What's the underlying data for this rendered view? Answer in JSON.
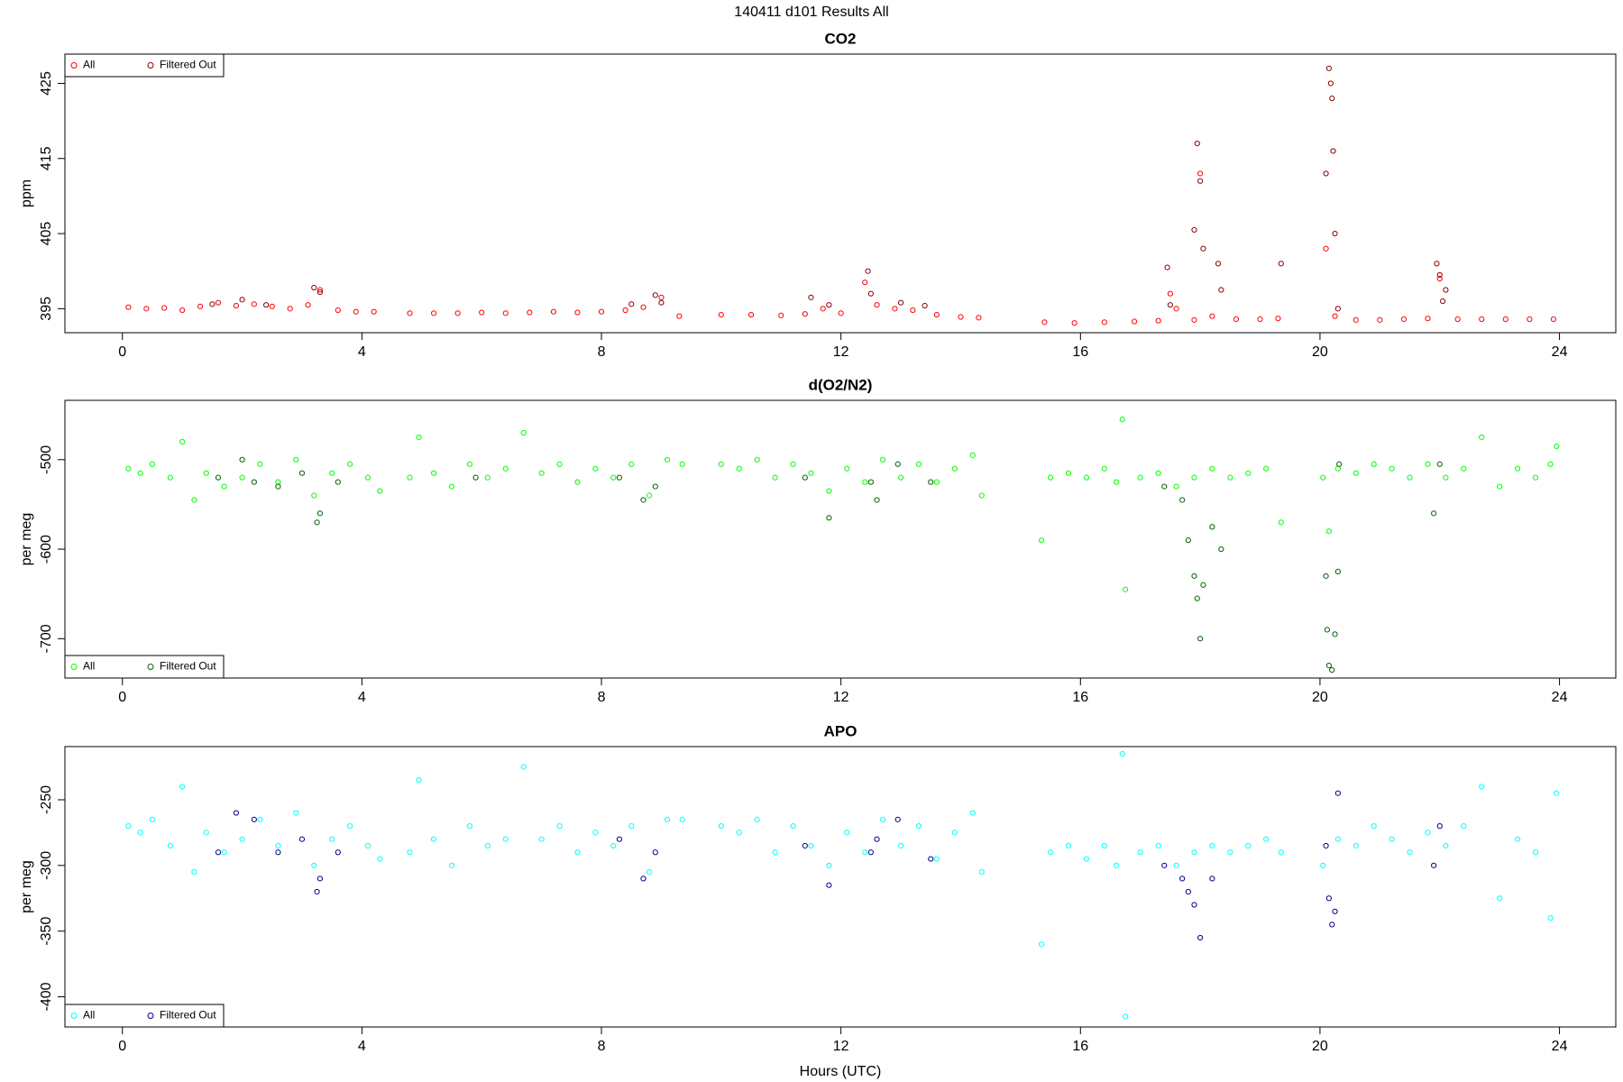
{
  "suptitle": "140411   d101   Results All",
  "chart_data": [
    {
      "type": "scatter",
      "title": "CO2",
      "ylabel": "ppm",
      "legend": "top-left",
      "xlim": [
        -0.96,
        24.94
      ],
      "xticks": [
        0,
        4,
        8,
        12,
        16,
        20,
        24
      ],
      "ylim": [
        391.8,
        428.9
      ],
      "yticks": [
        395,
        405,
        415,
        425
      ],
      "series": [
        {
          "name": "All",
          "color": "#ff0000",
          "x": [
            0.1,
            0.4,
            0.7,
            1.0,
            1.3,
            1.6,
            1.9,
            2.2,
            2.5,
            2.8,
            3.1,
            3.3,
            3.6,
            3.9,
            4.2,
            4.8,
            5.2,
            5.6,
            6.0,
            6.4,
            6.8,
            7.2,
            7.6,
            8.0,
            8.4,
            8.7,
            9.0,
            9.3,
            10.0,
            10.5,
            11.0,
            11.4,
            11.7,
            12.0,
            12.4,
            12.6,
            12.9,
            13.2,
            13.6,
            14.0,
            14.3,
            15.4,
            15.9,
            16.4,
            16.9,
            17.3,
            17.5,
            17.6,
            17.9,
            18.0,
            18.2,
            18.6,
            19.0,
            19.3,
            20.1,
            20.25,
            20.6,
            21.0,
            21.4,
            21.8,
            22.0,
            22.3,
            22.7,
            23.1,
            23.5,
            23.9
          ],
          "values": [
            395.2,
            395.0,
            395.1,
            394.8,
            395.3,
            395.8,
            395.4,
            395.6,
            395.3,
            395.0,
            395.5,
            397.5,
            394.8,
            394.6,
            394.6,
            394.4,
            394.4,
            394.4,
            394.5,
            394.4,
            394.5,
            394.6,
            394.5,
            394.6,
            394.8,
            395.2,
            396.5,
            394.0,
            394.2,
            394.2,
            394.1,
            394.3,
            395.0,
            394.4,
            398.5,
            395.5,
            395.0,
            394.8,
            394.2,
            393.9,
            393.8,
            393.2,
            393.1,
            393.2,
            393.3,
            393.4,
            397.0,
            395.0,
            393.5,
            413.0,
            394.0,
            393.6,
            393.6,
            393.7,
            403.0,
            394.0,
            393.5,
            393.5,
            393.6,
            393.7,
            399.0,
            393.6,
            393.6,
            393.6,
            393.6,
            393.6
          ]
        },
        {
          "name": "Filtered Out",
          "color": "#8b0000",
          "x": [
            1.5,
            2.0,
            2.4,
            3.2,
            3.3,
            8.5,
            8.9,
            9.0,
            11.5,
            11.8,
            12.45,
            12.5,
            13.0,
            13.4,
            17.45,
            17.5,
            17.9,
            17.95,
            18.0,
            18.05,
            18.3,
            18.35,
            19.35,
            20.15,
            20.18,
            20.2,
            20.22,
            20.25,
            20.1,
            20.3,
            21.95,
            22.0,
            22.1,
            22.05
          ],
          "values": [
            395.6,
            396.2,
            395.5,
            397.8,
            397.2,
            395.6,
            396.8,
            395.8,
            396.5,
            395.5,
            400.0,
            397.0,
            395.8,
            395.4,
            400.5,
            395.5,
            405.5,
            417.0,
            412.0,
            403.0,
            401.0,
            397.5,
            401.0,
            427.0,
            425.0,
            423.0,
            416.0,
            405.0,
            413.0,
            395.0,
            401.0,
            399.5,
            397.5,
            396.0
          ]
        }
      ]
    },
    {
      "type": "scatter",
      "title": "d(O2/N2)",
      "ylabel": "per meg",
      "legend": "bottom-left",
      "xlim": [
        -0.96,
        24.94
      ],
      "xticks": [
        0,
        4,
        8,
        12,
        16,
        20,
        24
      ],
      "ylim": [
        -744,
        -433.7
      ],
      "yticks": [
        -500,
        -600,
        -700
      ],
      "series": [
        {
          "name": "All",
          "color": "#00ff00",
          "x": [
            0.1,
            0.3,
            0.5,
            0.8,
            1.0,
            1.2,
            1.4,
            1.7,
            2.0,
            2.3,
            2.6,
            2.9,
            3.2,
            3.5,
            3.8,
            4.1,
            4.3,
            4.8,
            4.95,
            5.2,
            5.5,
            5.8,
            6.1,
            6.4,
            6.7,
            7.0,
            7.3,
            7.6,
            7.9,
            8.2,
            8.5,
            8.8,
            9.1,
            9.35,
            10.0,
            10.3,
            10.6,
            10.9,
            11.2,
            11.5,
            11.8,
            12.1,
            12.4,
            12.7,
            13.0,
            13.3,
            13.6,
            13.9,
            14.2,
            14.35,
            15.35,
            15.5,
            15.8,
            16.1,
            16.4,
            16.6,
            16.7,
            16.75,
            17.0,
            17.3,
            17.6,
            17.9,
            18.2,
            18.5,
            18.8,
            19.1,
            19.35,
            20.05,
            20.15,
            20.3,
            20.6,
            20.9,
            21.2,
            21.5,
            21.8,
            22.1,
            22.4,
            22.7,
            23.0,
            23.3,
            23.6,
            23.85,
            23.95
          ],
          "values": [
            -510,
            -515,
            -505,
            -520,
            -480,
            -545,
            -515,
            -530,
            -520,
            -505,
            -525,
            -500,
            -540,
            -515,
            -505,
            -520,
            -535,
            -520,
            -475,
            -515,
            -530,
            -505,
            -520,
            -510,
            -470,
            -515,
            -505,
            -525,
            -510,
            -520,
            -505,
            -540,
            -500,
            -505,
            -505,
            -510,
            -500,
            -520,
            -505,
            -515,
            -535,
            -510,
            -525,
            -500,
            -520,
            -505,
            -525,
            -510,
            -495,
            -540,
            -590,
            -520,
            -515,
            -520,
            -510,
            -525,
            -455,
            -645,
            -520,
            -515,
            -530,
            -520,
            -510,
            -520,
            -515,
            -510,
            -570,
            -520,
            -580,
            -510,
            -515,
            -505,
            -510,
            -520,
            -505,
            -520,
            -510,
            -475,
            -530,
            -510,
            -520,
            -505,
            -485
          ]
        },
        {
          "name": "Filtered Out",
          "color": "#006400",
          "x": [
            1.6,
            2.0,
            2.2,
            2.6,
            3.0,
            3.25,
            3.3,
            3.6,
            5.9,
            8.3,
            8.7,
            8.9,
            11.4,
            11.8,
            12.5,
            12.6,
            12.95,
            13.5,
            17.4,
            17.7,
            17.8,
            17.9,
            17.95,
            18.0,
            18.05,
            18.2,
            18.35,
            20.1,
            20.12,
            20.15,
            20.2,
            20.25,
            20.3,
            20.32,
            21.9,
            22.0
          ],
          "values": [
            -520,
            -500,
            -525,
            -530,
            -515,
            -570,
            -560,
            -525,
            -520,
            -520,
            -545,
            -530,
            -520,
            -565,
            -525,
            -545,
            -505,
            -525,
            -530,
            -545,
            -590,
            -630,
            -655,
            -700,
            -640,
            -575,
            -600,
            -630,
            -690,
            -730,
            -735,
            -695,
            -625,
            -505,
            -560,
            -505
          ]
        }
      ]
    },
    {
      "type": "scatter",
      "title": "APO",
      "ylabel": "per meg",
      "xlabel": "Hours (UTC)",
      "legend": "bottom-left",
      "xlim": [
        -0.96,
        24.94
      ],
      "xticks": [
        0,
        4,
        8,
        12,
        16,
        20,
        24
      ],
      "ylim": [
        -423,
        -209.5
      ],
      "yticks": [
        -250,
        -300,
        -350,
        -400
      ],
      "series": [
        {
          "name": "All",
          "color": "#00ffff",
          "x": [
            0.1,
            0.3,
            0.5,
            0.8,
            1.0,
            1.2,
            1.4,
            1.7,
            2.0,
            2.3,
            2.6,
            2.9,
            3.2,
            3.5,
            3.8,
            4.1,
            4.3,
            4.8,
            4.95,
            5.2,
            5.5,
            5.8,
            6.1,
            6.4,
            6.7,
            7.0,
            7.3,
            7.6,
            7.9,
            8.2,
            8.5,
            8.8,
            9.1,
            9.35,
            10.0,
            10.3,
            10.6,
            10.9,
            11.2,
            11.5,
            11.8,
            12.1,
            12.4,
            12.7,
            13.0,
            13.3,
            13.6,
            13.9,
            14.2,
            14.35,
            15.35,
            15.5,
            15.8,
            16.1,
            16.4,
            16.6,
            16.7,
            16.75,
            17.0,
            17.3,
            17.6,
            17.9,
            18.2,
            18.5,
            18.8,
            19.1,
            19.35,
            20.05,
            20.3,
            20.6,
            20.9,
            21.2,
            21.5,
            21.8,
            22.1,
            22.4,
            22.7,
            23.0,
            23.3,
            23.6,
            23.85,
            23.95
          ],
          "values": [
            -270,
            -275,
            -265,
            -285,
            -240,
            -305,
            -275,
            -290,
            -280,
            -265,
            -285,
            -260,
            -300,
            -280,
            -270,
            -285,
            -295,
            -290,
            -235,
            -280,
            -300,
            -270,
            -285,
            -280,
            -225,
            -280,
            -270,
            -290,
            -275,
            -285,
            -270,
            -305,
            -265,
            -265,
            -270,
            -275,
            -265,
            -290,
            -270,
            -285,
            -300,
            -275,
            -290,
            -265,
            -285,
            -270,
            -295,
            -275,
            -260,
            -305,
            -360,
            -290,
            -285,
            -295,
            -285,
            -300,
            -215,
            -415,
            -290,
            -285,
            -300,
            -290,
            -285,
            -290,
            -285,
            -280,
            -290,
            -300,
            -280,
            -285,
            -270,
            -280,
            -290,
            -275,
            -285,
            -270,
            -240,
            -325,
            -280,
            -290,
            -340,
            -245
          ]
        },
        {
          "name": "Filtered Out",
          "color": "#00008b",
          "x": [
            1.6,
            1.9,
            2.2,
            2.6,
            3.0,
            3.25,
            3.3,
            3.6,
            8.3,
            8.7,
            8.9,
            11.4,
            11.8,
            12.5,
            12.6,
            12.95,
            13.5,
            17.4,
            17.7,
            17.8,
            17.9,
            18.0,
            18.2,
            20.1,
            20.15,
            20.2,
            20.25,
            20.3,
            21.9,
            22.0
          ],
          "values": [
            -290,
            -260,
            -265,
            -290,
            -280,
            -320,
            -310,
            -290,
            -280,
            -310,
            -290,
            -285,
            -315,
            -290,
            -280,
            -265,
            -295,
            -300,
            -310,
            -320,
            -330,
            -355,
            -310,
            -285,
            -325,
            -345,
            -335,
            -245,
            -300,
            -270
          ]
        }
      ]
    }
  ]
}
